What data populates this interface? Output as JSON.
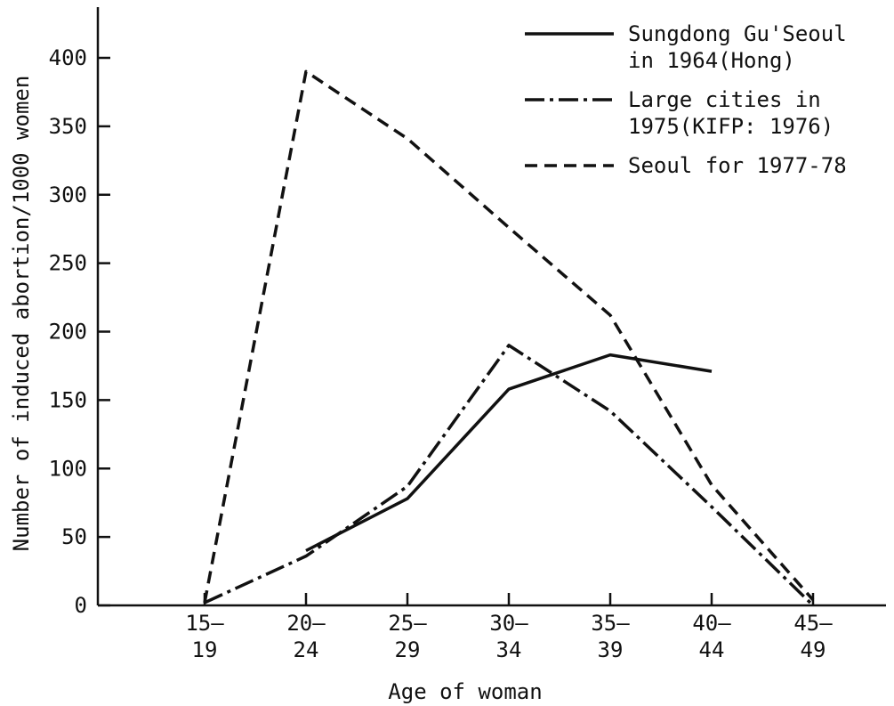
{
  "chart_data": {
    "type": "line",
    "xlabel": "Age of woman",
    "ylabel": "Number of induced abortion/1000 women",
    "ylim": [
      0,
      400
    ],
    "yticks": [
      "0",
      "50",
      "100",
      "150",
      "200",
      "250",
      "300",
      "350",
      "400"
    ],
    "categories": [
      {
        "top": "15–",
        "bottom": "19"
      },
      {
        "top": "20–",
        "bottom": "24"
      },
      {
        "top": "25–",
        "bottom": "29"
      },
      {
        "top": "30–",
        "bottom": "34"
      },
      {
        "top": "35–",
        "bottom": "39"
      },
      {
        "top": "40–",
        "bottom": "44"
      },
      {
        "top": "45–",
        "bottom": "49"
      }
    ],
    "series": [
      {
        "name": [
          "Sungdong Gu'Seoul",
          "in 1964(Hong)"
        ],
        "style": "solid",
        "values": [
          null,
          40,
          78,
          158,
          183,
          171,
          null
        ]
      },
      {
        "name": [
          "Large cities in",
          "1975(KIFP: 1976)"
        ],
        "style": "dashdot",
        "values": [
          2,
          36,
          87,
          190,
          142,
          72,
          0
        ]
      },
      {
        "name": [
          "Seoul for 1977-78"
        ],
        "style": "dashed",
        "values": [
          2,
          390,
          341,
          276,
          212,
          88,
          4
        ]
      }
    ],
    "legend_position": "top-right",
    "color": "#111111"
  }
}
